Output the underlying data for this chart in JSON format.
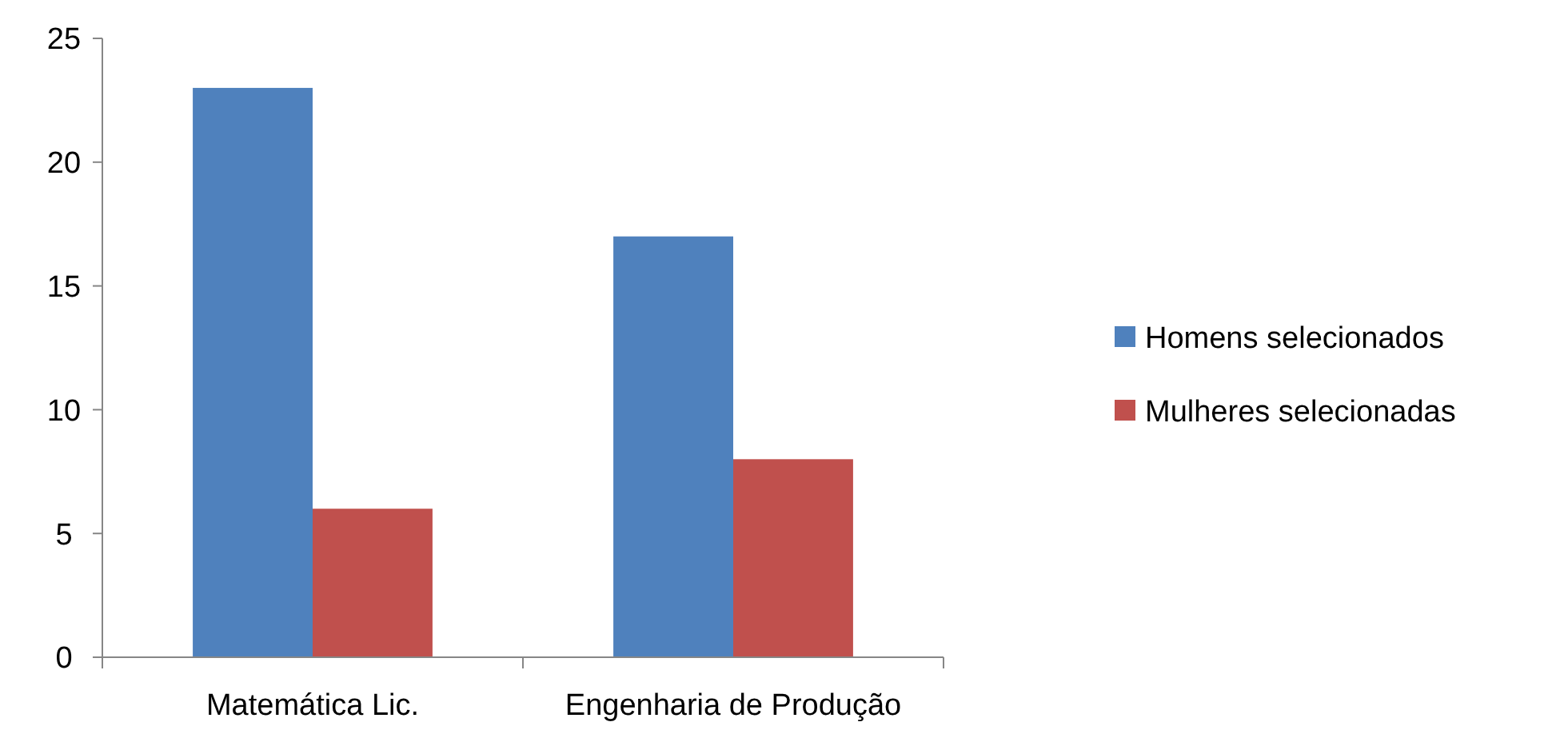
{
  "chart_data": {
    "type": "bar",
    "categories": [
      "Matemática Lic.",
      "Engenharia de Produção"
    ],
    "series": [
      {
        "name": "Homens selecionados",
        "color": "#4f81bd",
        "values": [
          23,
          17
        ]
      },
      {
        "name": "Mulheres selecionadas",
        "color": "#c0504d",
        "values": [
          6,
          8
        ]
      }
    ],
    "ylim": [
      0,
      25
    ],
    "yticks": [
      0,
      5,
      10,
      15,
      20,
      25
    ],
    "grid": false,
    "legend": "right"
  }
}
